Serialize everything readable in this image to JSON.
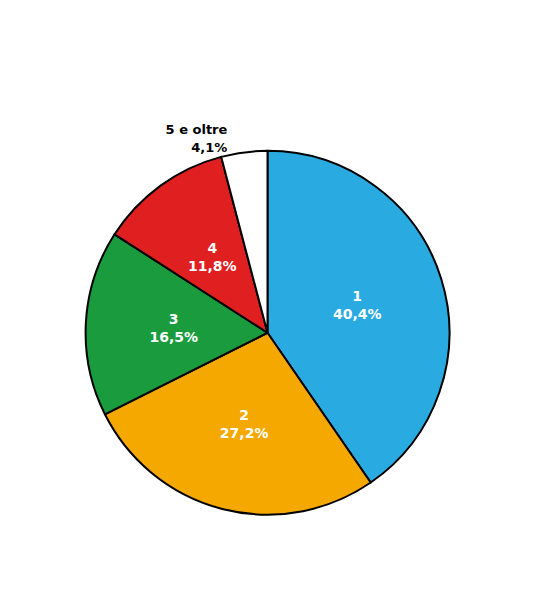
{
  "chart_data": {
    "type": "pie",
    "categories": [
      "1",
      "2",
      "3",
      "4",
      "5 e oltre"
    ],
    "values": [
      40.4,
      27.2,
      16.5,
      11.8,
      4.1
    ],
    "value_labels": [
      "40,4%",
      "27,2%",
      "16,5%",
      "11,8%",
      "4,1%"
    ],
    "colors": [
      "#29ABE2",
      "#F5A800",
      "#1A9C3E",
      "#E02020",
      "#FFFFFF"
    ],
    "data_labels": true
  }
}
